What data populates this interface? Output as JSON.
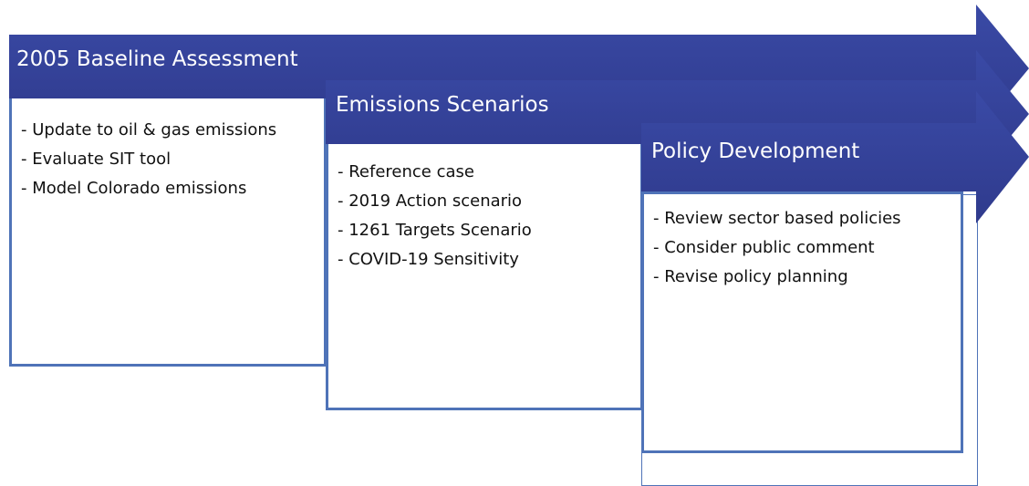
{
  "stages": [
    {
      "title": "2005 Baseline Assessment",
      "items": [
        "- Update to oil & gas emissions",
        "- Evaluate SIT tool",
        "- Model Colorado emissions"
      ]
    },
    {
      "title": "Emissions Scenarios",
      "items": [
        "- Reference case",
        "- 2019 Action scenario",
        "- 1261 Targets Scenario",
        "- COVID-19 Sensitivity"
      ]
    },
    {
      "title": "Policy Development",
      "items": [
        "- Review sector based policies",
        "- Consider public comment",
        "- Revise policy planning"
      ]
    }
  ]
}
